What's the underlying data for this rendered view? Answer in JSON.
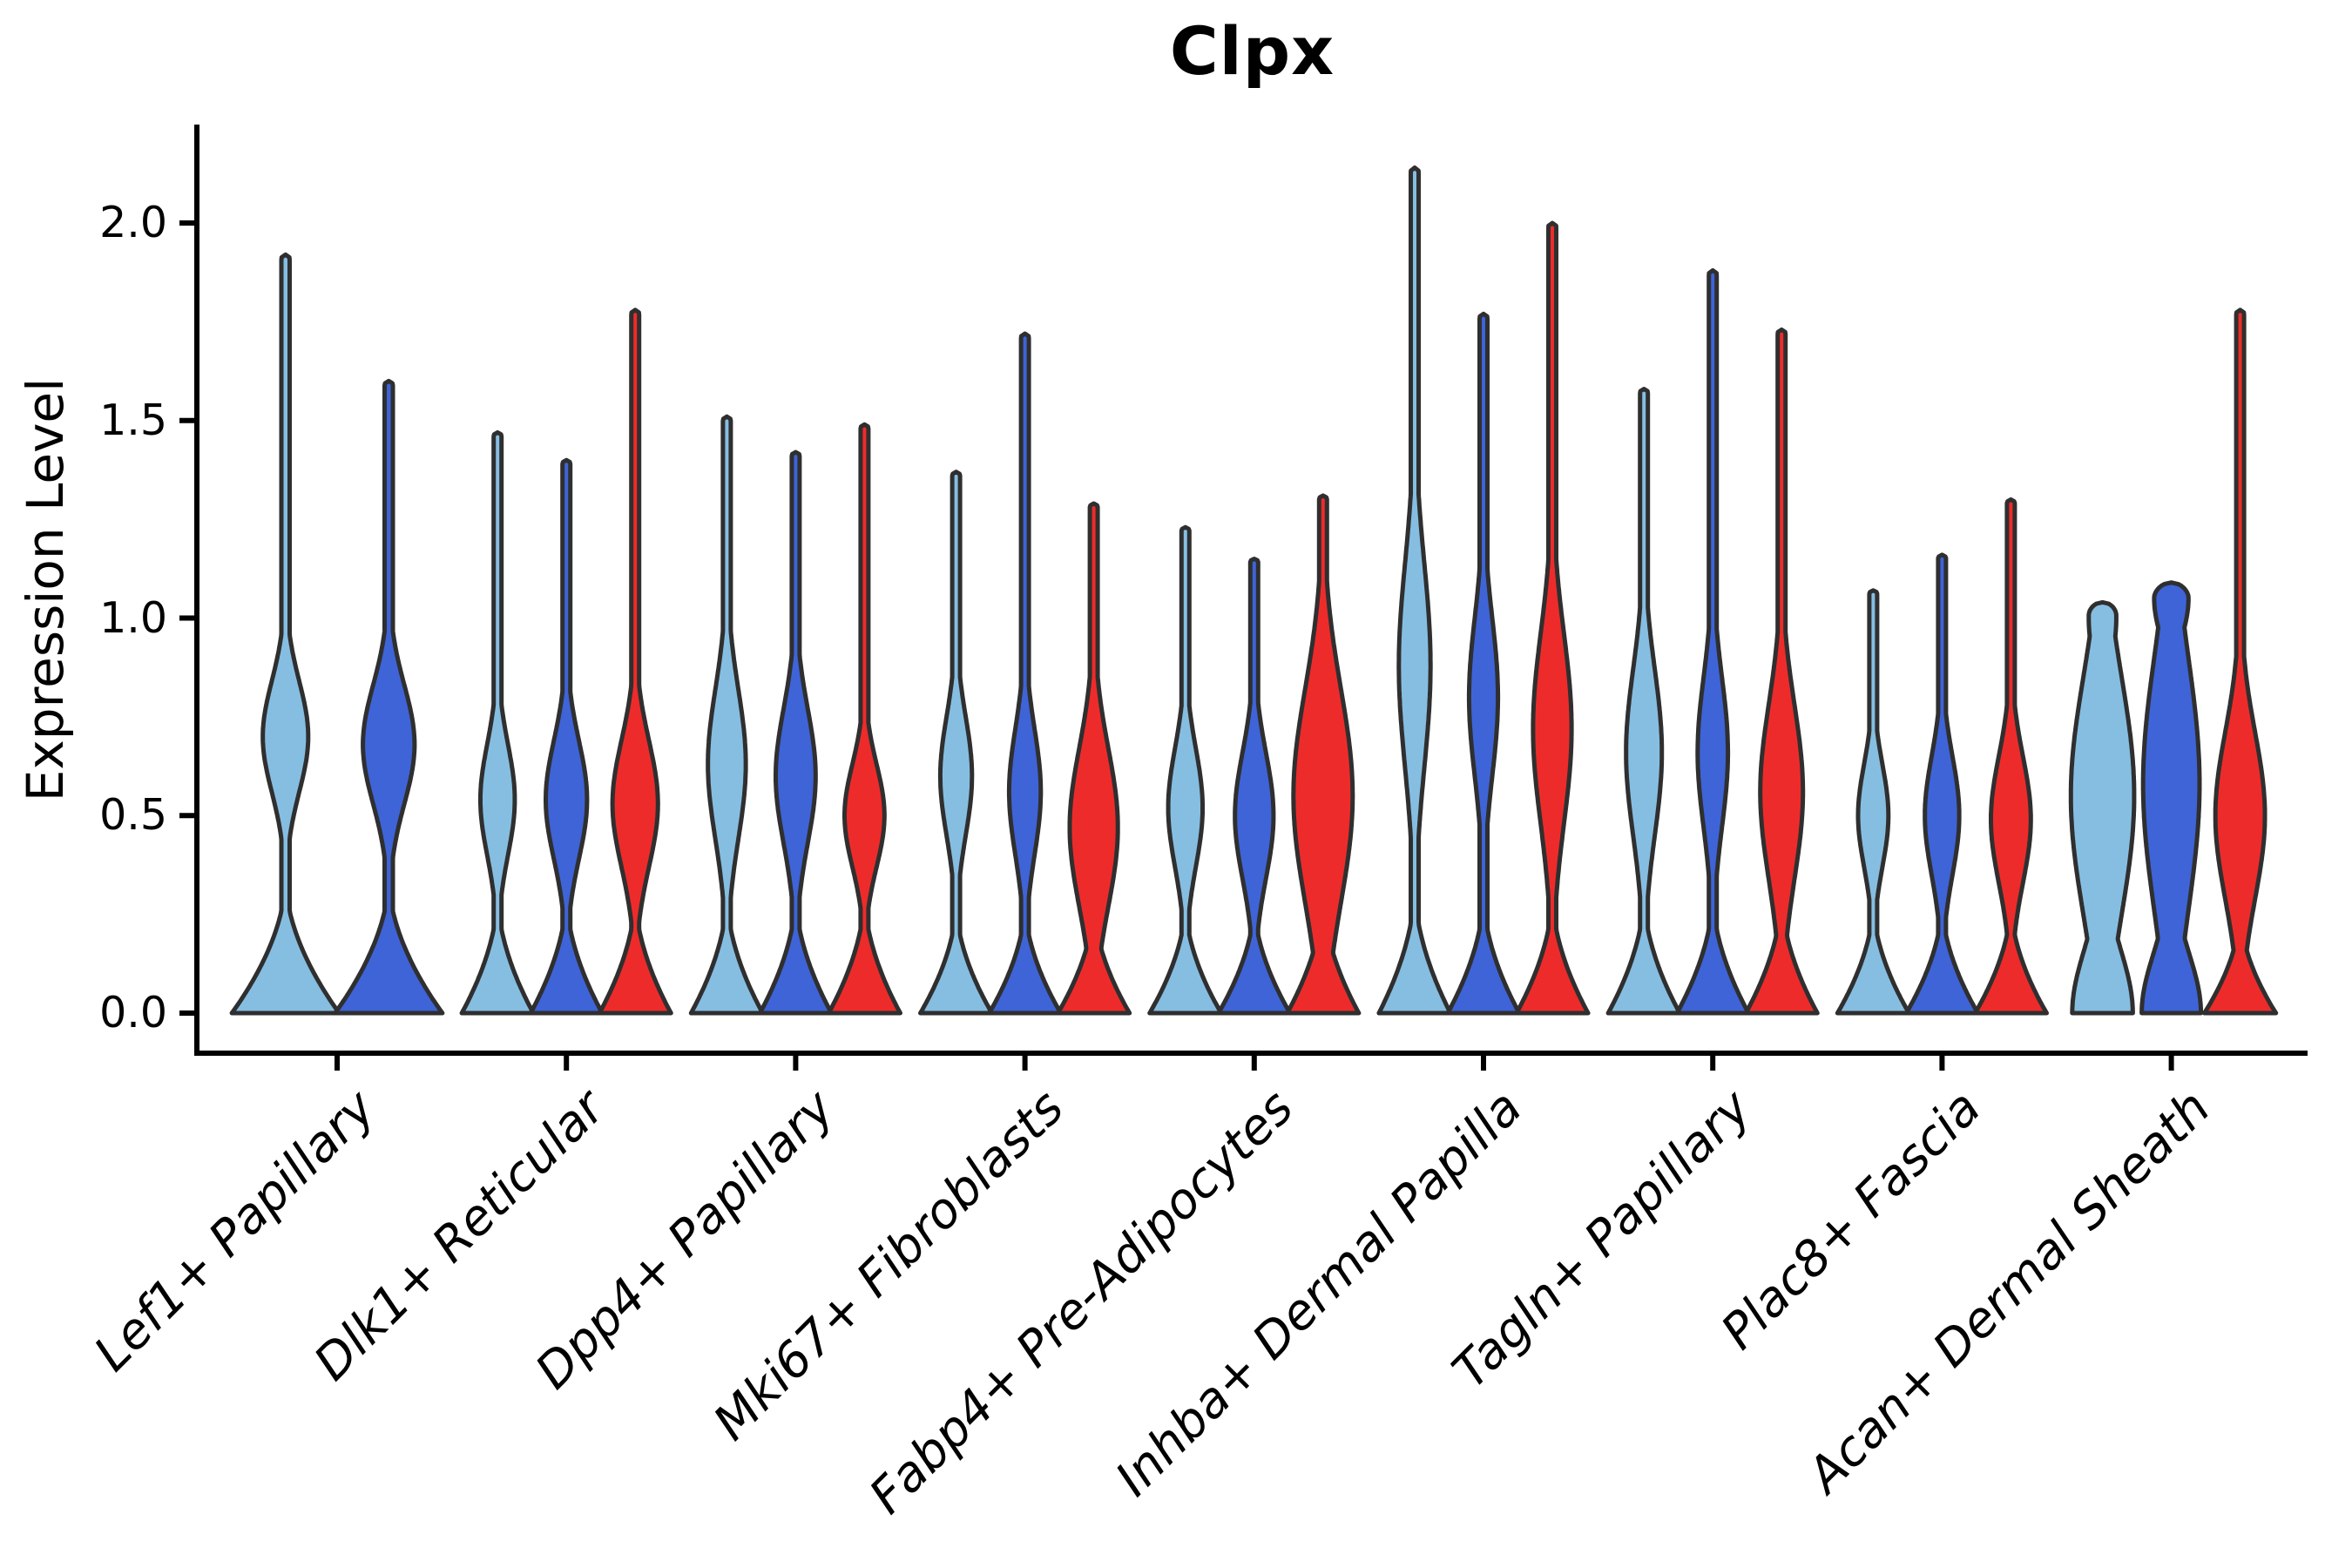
{
  "chart_data": {
    "type": "violin",
    "title": "Clpx",
    "ylabel": "Expression Level",
    "xlabel": "",
    "ytick_labels": [
      "2.0",
      "1.5",
      "1.0",
      "0.5",
      "0.0"
    ],
    "ytick_values": [
      2.0,
      1.5,
      1.0,
      0.5,
      0.0
    ],
    "ylim": [
      -0.1,
      2.24
    ],
    "grid": false,
    "legend": "none",
    "x_label_rotation_deg": 45,
    "categories": [
      "Lef1+ Papillary",
      "Dlk1+ Reticular",
      "Dpp4+ Papillary",
      "Mki67+ Fibroblasts",
      "Fabp4+ Pre-Adipocytes",
      "Inhba+ Dermal Papilla",
      "Tagln+ Papillary",
      "Plac8+ Fascia",
      "Acan+ Dermal Sheath"
    ],
    "palette": {
      "light_blue": "#86BEE2",
      "royal_blue": "#3E64D7",
      "red": "#EE2B2B"
    },
    "edge_color": "#2F2F2F",
    "axis_color": "#000000",
    "groups": [
      {
        "category": "Lef1+ Papillary",
        "violins": [
          {
            "split": "light_blue",
            "max": 1.92,
            "base_height": 0.34,
            "spike_halfwidth": 0.08,
            "bulges": [
              {
                "center": 0.7,
                "sigma": 0.14,
                "width": 0.44
              }
            ]
          },
          {
            "split": "royal_blue",
            "max": 1.6,
            "base_height": 0.34,
            "spike_halfwidth": 0.08,
            "bulges": [
              {
                "center": 0.68,
                "sigma": 0.15,
                "width": 0.5
              }
            ]
          }
        ]
      },
      {
        "category": "Dlk1+ Reticular",
        "violins": [
          {
            "split": "light_blue",
            "max": 1.47,
            "base_height": 0.3,
            "spike_halfwidth": 0.115,
            "bulges": [
              {
                "center": 0.54,
                "sigma": 0.14,
                "width": 0.5
              }
            ]
          },
          {
            "split": "royal_blue",
            "max": 1.4,
            "base_height": 0.3,
            "spike_halfwidth": 0.115,
            "bulges": [
              {
                "center": 0.54,
                "sigma": 0.15,
                "width": 0.6
              }
            ]
          },
          {
            "split": "red",
            "max": 1.78,
            "base_height": 0.3,
            "spike_halfwidth": 0.115,
            "bulges": [
              {
                "center": 0.53,
                "sigma": 0.16,
                "width": 0.66
              }
            ]
          }
        ]
      },
      {
        "category": "Dpp4+ Papillary",
        "violins": [
          {
            "split": "light_blue",
            "max": 1.51,
            "base_height": 0.3,
            "spike_halfwidth": 0.115,
            "bulges": [
              {
                "center": 0.63,
                "sigma": 0.19,
                "width": 0.55
              }
            ]
          },
          {
            "split": "royal_blue",
            "max": 1.42,
            "base_height": 0.3,
            "spike_halfwidth": 0.115,
            "bulges": [
              {
                "center": 0.6,
                "sigma": 0.17,
                "width": 0.58
              }
            ]
          },
          {
            "split": "red",
            "max": 1.49,
            "base_height": 0.3,
            "spike_halfwidth": 0.115,
            "bulges": [
              {
                "center": 0.5,
                "sigma": 0.13,
                "width": 0.58
              }
            ]
          }
        ]
      },
      {
        "category": "Mki67+ Fibroblasts",
        "violins": [
          {
            "split": "light_blue",
            "max": 1.37,
            "base_height": 0.28,
            "spike_halfwidth": 0.115,
            "bulges": [
              {
                "center": 0.6,
                "sigma": 0.15,
                "width": 0.46
              }
            ]
          },
          {
            "split": "royal_blue",
            "max": 1.72,
            "base_height": 0.28,
            "spike_halfwidth": 0.115,
            "bulges": [
              {
                "center": 0.56,
                "sigma": 0.16,
                "width": 0.46
              }
            ]
          },
          {
            "split": "red",
            "max": 1.29,
            "base_height": 0.28,
            "spike_halfwidth": 0.115,
            "bulges": [
              {
                "center": 0.47,
                "sigma": 0.2,
                "width": 0.7
              }
            ]
          }
        ]
      },
      {
        "category": "Fabp4+ Pre-Adipocytes",
        "violins": [
          {
            "split": "light_blue",
            "max": 1.23,
            "base_height": 0.28,
            "spike_halfwidth": 0.115,
            "bulges": [
              {
                "center": 0.52,
                "sigma": 0.15,
                "width": 0.5
              }
            ]
          },
          {
            "split": "royal_blue",
            "max": 1.15,
            "base_height": 0.28,
            "spike_halfwidth": 0.115,
            "bulges": [
              {
                "center": 0.5,
                "sigma": 0.16,
                "width": 0.56
              }
            ]
          },
          {
            "split": "red",
            "max": 1.31,
            "base_height": 0.3,
            "spike_halfwidth": 0.115,
            "bulges": [
              {
                "center": 0.55,
                "sigma": 0.27,
                "width": 0.86
              }
            ]
          }
        ]
      },
      {
        "category": "Inhba+ Dermal Papilla",
        "violins": [
          {
            "split": "light_blue",
            "max": 2.14,
            "base_height": 0.32,
            "spike_halfwidth": 0.115,
            "bulges": [
              {
                "center": 0.88,
                "sigma": 0.26,
                "width": 0.46
              }
            ]
          },
          {
            "split": "royal_blue",
            "max": 1.77,
            "base_height": 0.3,
            "spike_halfwidth": 0.115,
            "bulges": [
              {
                "center": 0.8,
                "sigma": 0.2,
                "width": 0.42
              }
            ]
          },
          {
            "split": "red",
            "max": 2.0,
            "base_height": 0.3,
            "spike_halfwidth": 0.115,
            "bulges": [
              {
                "center": 0.72,
                "sigma": 0.24,
                "width": 0.56
              }
            ]
          }
        ]
      },
      {
        "category": "Tagln+ Papillary",
        "violins": [
          {
            "split": "light_blue",
            "max": 1.58,
            "base_height": 0.3,
            "spike_halfwidth": 0.115,
            "bulges": [
              {
                "center": 0.66,
                "sigma": 0.21,
                "width": 0.52
              }
            ]
          },
          {
            "split": "royal_blue",
            "max": 1.88,
            "base_height": 0.3,
            "spike_halfwidth": 0.115,
            "bulges": [
              {
                "center": 0.66,
                "sigma": 0.19,
                "width": 0.44
              }
            ]
          },
          {
            "split": "red",
            "max": 1.73,
            "base_height": 0.3,
            "spike_halfwidth": 0.115,
            "bulges": [
              {
                "center": 0.56,
                "sigma": 0.22,
                "width": 0.62
              }
            ]
          }
        ]
      },
      {
        "category": "Plac8+ Fascia",
        "violins": [
          {
            "split": "light_blue",
            "max": 1.07,
            "base_height": 0.28,
            "spike_halfwidth": 0.115,
            "bulges": [
              {
                "center": 0.5,
                "sigma": 0.13,
                "width": 0.44
              }
            ]
          },
          {
            "split": "royal_blue",
            "max": 1.16,
            "base_height": 0.28,
            "spike_halfwidth": 0.115,
            "bulges": [
              {
                "center": 0.5,
                "sigma": 0.15,
                "width": 0.5
              }
            ]
          },
          {
            "split": "red",
            "max": 1.3,
            "base_height": 0.28,
            "spike_halfwidth": 0.115,
            "bulges": [
              {
                "center": 0.49,
                "sigma": 0.16,
                "width": 0.58
              }
            ]
          }
        ]
      },
      {
        "category": "Acan+ Dermal Sheath",
        "violins": [
          {
            "split": "light_blue",
            "max": 1.04,
            "base_height": 0.0,
            "spike_halfwidth": 0,
            "bulges": [
              {
                "center": 0.55,
                "sigma": 0.3,
                "width": 0.92
              },
              {
                "center": 0.0,
                "sigma": 0.16,
                "width": 0.88
              },
              {
                "center": 1.0,
                "sigma": 0.12,
                "width": 0.4
              }
            ]
          },
          {
            "split": "royal_blue",
            "max": 1.09,
            "base_height": 0.0,
            "spike_halfwidth": 0,
            "bulges": [
              {
                "center": 0.58,
                "sigma": 0.32,
                "width": 0.82
              },
              {
                "center": 0.0,
                "sigma": 0.15,
                "width": 0.86
              },
              {
                "center": 1.05,
                "sigma": 0.1,
                "width": 0.5
              }
            ]
          },
          {
            "split": "red",
            "max": 1.78,
            "base_height": 0.26,
            "spike_halfwidth": 0.115,
            "bulges": [
              {
                "center": 0.5,
                "sigma": 0.21,
                "width": 0.72
              }
            ]
          }
        ]
      }
    ]
  }
}
